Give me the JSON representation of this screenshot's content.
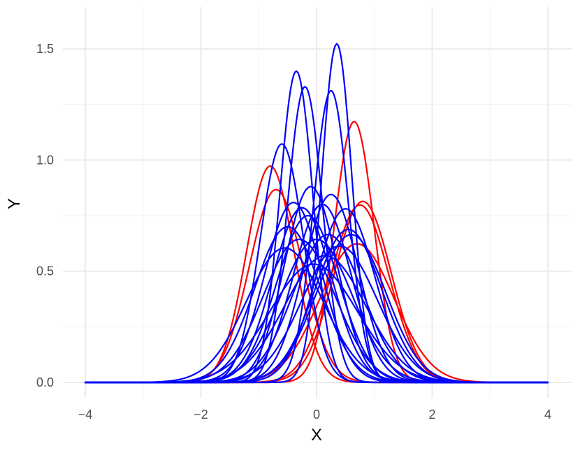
{
  "chart_data": {
    "type": "line",
    "title": "",
    "xlabel": "X",
    "ylabel": "Y",
    "xlim": [
      -4,
      4
    ],
    "ylim": [
      0,
      1.6
    ],
    "x_ticks": [
      -4,
      -2,
      0,
      2,
      4
    ],
    "x_tick_labels": [
      "−4",
      "−2",
      "0",
      "2",
      "4"
    ],
    "y_ticks": [
      0.0,
      0.5,
      1.0,
      1.5
    ],
    "y_tick_labels": [
      "0.0",
      "0.5",
      "1.0",
      "1.5"
    ],
    "grid": true,
    "legend": "none",
    "series_kind": "normal density curves",
    "colors": {
      "red": "#ff0000",
      "blue": "#0000ff"
    },
    "series": [
      {
        "color": "red",
        "mean": -0.8,
        "sd": 0.41
      },
      {
        "color": "red",
        "mean": -0.7,
        "sd": 0.46
      },
      {
        "color": "red",
        "mean": 0.65,
        "sd": 0.34
      },
      {
        "color": "red",
        "mean": 0.8,
        "sd": 0.49
      },
      {
        "color": "red",
        "mean": 0.75,
        "sd": 0.5
      },
      {
        "color": "red",
        "mean": 0.7,
        "sd": 0.64
      },
      {
        "color": "blue",
        "mean": 0.35,
        "sd": 0.262
      },
      {
        "color": "blue",
        "mean": -0.35,
        "sd": 0.285
      },
      {
        "color": "blue",
        "mean": -0.2,
        "sd": 0.3
      },
      {
        "color": "blue",
        "mean": 0.25,
        "sd": 0.304
      },
      {
        "color": "blue",
        "mean": -0.6,
        "sd": 0.372
      },
      {
        "color": "blue",
        "mean": -0.1,
        "sd": 0.453
      },
      {
        "color": "blue",
        "mean": 0.25,
        "sd": 0.472
      },
      {
        "color": "blue",
        "mean": -0.4,
        "sd": 0.493
      },
      {
        "color": "blue",
        "mean": 0.5,
        "sd": 0.511
      },
      {
        "color": "blue",
        "mean": -0.25,
        "sd": 0.508
      },
      {
        "color": "blue",
        "mean": 0.1,
        "sd": 0.498
      },
      {
        "color": "blue",
        "mean": -0.15,
        "sd": 0.532
      },
      {
        "color": "blue",
        "mean": 0.55,
        "sd": 0.58
      },
      {
        "color": "blue",
        "mean": -0.5,
        "sd": 0.57
      },
      {
        "color": "blue",
        "mean": 0.0,
        "sd": 0.62
      },
      {
        "color": "blue",
        "mean": 0.6,
        "sd": 0.6
      },
      {
        "color": "blue",
        "mean": -0.55,
        "sd": 0.66
      },
      {
        "color": "blue",
        "mean": 0.2,
        "sd": 0.6
      },
      {
        "color": "blue",
        "mean": 0.4,
        "sd": 0.65
      },
      {
        "color": "blue",
        "mean": -0.3,
        "sd": 0.62
      },
      {
        "color": "blue",
        "mean": 0.15,
        "sd": 0.7
      },
      {
        "color": "blue",
        "mean": -0.05,
        "sd": 0.75
      }
    ]
  }
}
